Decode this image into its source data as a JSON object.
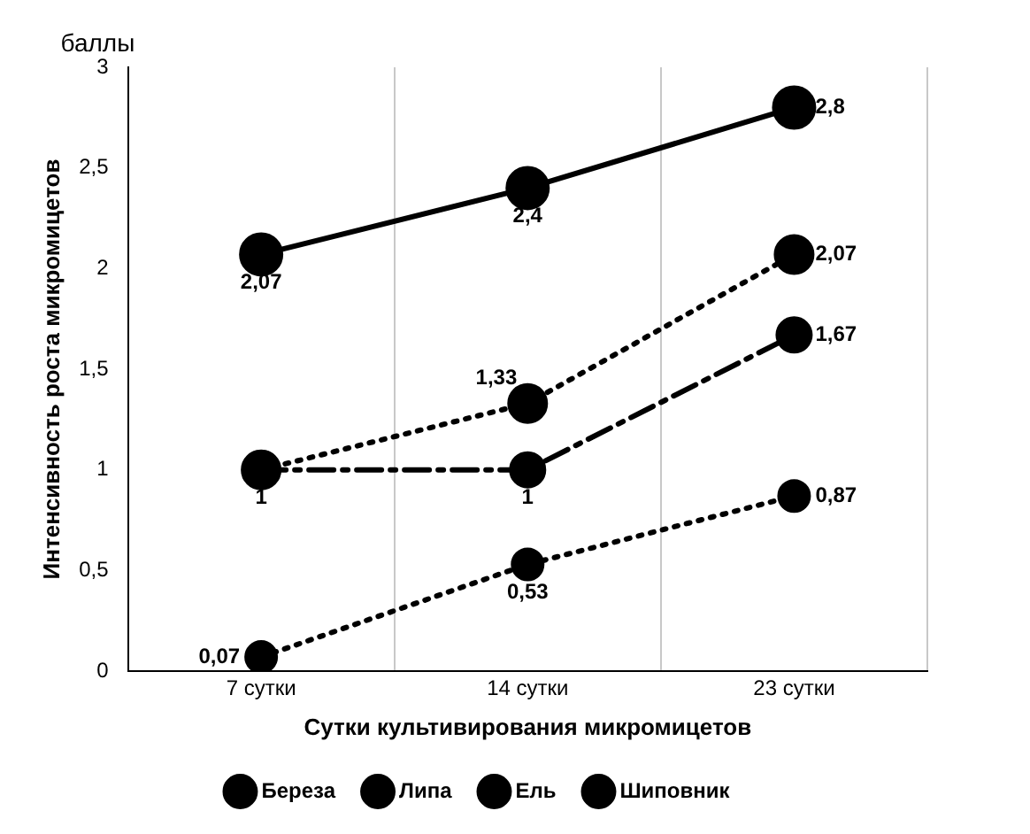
{
  "chart_data": {
    "type": "line",
    "xlabel": "Сутки культивирования микромицетов",
    "ylabel": "Интенсивность роста микромицетов",
    "annotations": [
      "баллы"
    ],
    "categories": [
      "7 сутки",
      "14 сутки",
      "23 сутки"
    ],
    "series": [
      {
        "name": "Береза",
        "color": "#000000",
        "values": [
          2.07,
          2.4,
          2.8
        ],
        "line_style": "solid",
        "value_labels": [
          "2,07",
          "2,4",
          "2,8"
        ]
      },
      {
        "name": "Липа",
        "color": "#000000",
        "values": [
          1,
          1.33,
          2.07
        ],
        "line_style": "dotted",
        "value_labels": [
          null,
          "1,33",
          "2,07"
        ]
      },
      {
        "name": "Ель",
        "color": "#000000",
        "values": [
          1,
          1,
          1.67
        ],
        "line_style": "dashed",
        "value_labels": [
          "1",
          "1",
          "1,67"
        ]
      },
      {
        "name": "Шиповник",
        "color": "#000000",
        "values": [
          0.07,
          0.53,
          0.87
        ],
        "line_style": "dotted",
        "value_labels": [
          "0,07",
          "0,53",
          "0,87"
        ]
      }
    ],
    "ylim": [
      0,
      3
    ],
    "yticks": [
      0,
      {
        "value": 0.5,
        "label": "0,5"
      },
      1,
      {
        "value": 1.5,
        "label": "1,5"
      },
      2,
      {
        "value": 2.5,
        "label": "2,5"
      },
      3
    ],
    "grid": "x",
    "legend": "bottom",
    "marker": "circle"
  }
}
